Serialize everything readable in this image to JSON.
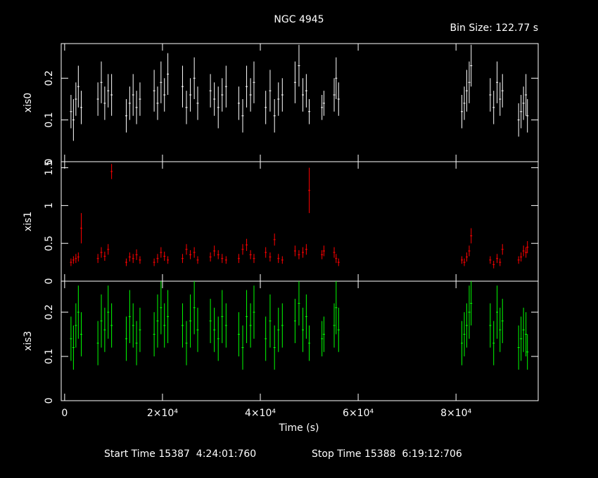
{
  "title": "NGC 4945",
  "bin_size": "Bin Size: 122.77 s",
  "start_time": "Start Time 15387  4:24:01:760",
  "stop_time": "Stop Time 15388  6:19:12:706",
  "chart_data": {
    "type": "scatter",
    "x_label": "Time (s)",
    "xlim": [
      -700,
      96800
    ],
    "xticks": [
      0,
      {
        "value": 20000,
        "label": "2×10⁴"
      },
      {
        "value": 40000,
        "label": "4×10⁴"
      },
      {
        "value": 60000,
        "label": "6×10⁴"
      },
      {
        "value": 80000,
        "label": "8×10⁴"
      }
    ],
    "x": [
      1300,
      1800,
      2300,
      2800,
      3400,
      6800,
      7500,
      8200,
      8900,
      9600,
      12600,
      13300,
      14000,
      14700,
      15400,
      18300,
      19000,
      19700,
      20400,
      21100,
      24100,
      24900,
      25700,
      26500,
      27200,
      29800,
      30600,
      31400,
      32200,
      33000,
      35600,
      36400,
      37200,
      38000,
      38700,
      41100,
      42000,
      42900,
      43700,
      44500,
      47100,
      47900,
      48700,
      49400,
      50000,
      52600,
      53000,
      55100,
      55500,
      56000,
      81200,
      81700,
      82200,
      82700,
      83100,
      87000,
      87700,
      88400,
      89000,
      89500,
      92800,
      93300,
      93800,
      94300,
      94600
    ],
    "series": [
      {
        "name": "xis0",
        "color": "#ffffff",
        "ylim": [
          0,
          0.283
        ],
        "yticks": [
          0,
          0.1,
          0.2
        ],
        "values": [
          0.12,
          0.1,
          0.15,
          0.18,
          0.13,
          0.15,
          0.19,
          0.14,
          0.17,
          0.16,
          0.11,
          0.14,
          0.16,
          0.13,
          0.15,
          0.17,
          0.14,
          0.19,
          0.16,
          0.21,
          0.18,
          0.13,
          0.16,
          0.2,
          0.14,
          0.17,
          0.15,
          0.13,
          0.16,
          0.18,
          0.14,
          0.11,
          0.18,
          0.16,
          0.19,
          0.13,
          0.17,
          0.11,
          0.15,
          0.16,
          0.19,
          0.23,
          0.16,
          0.17,
          0.12,
          0.13,
          0.14,
          0.16,
          0.2,
          0.15,
          0.12,
          0.14,
          0.17,
          0.19,
          0.23,
          0.16,
          0.13,
          0.19,
          0.15,
          0.17,
          0.1,
          0.12,
          0.14,
          0.16,
          0.11
        ],
        "errors": [
          0.04,
          0.05,
          0.04,
          0.05,
          0.04,
          0.04,
          0.05,
          0.04,
          0.04,
          0.05,
          0.04,
          0.04,
          0.05,
          0.04,
          0.04,
          0.05,
          0.04,
          0.05,
          0.04,
          0.05,
          0.05,
          0.04,
          0.04,
          0.05,
          0.04,
          0.04,
          0.04,
          0.05,
          0.04,
          0.05,
          0.04,
          0.04,
          0.05,
          0.04,
          0.05,
          0.04,
          0.05,
          0.04,
          0.04,
          0.04,
          0.05,
          0.05,
          0.04,
          0.04,
          0.03,
          0.03,
          0.03,
          0.04,
          0.05,
          0.04,
          0.04,
          0.04,
          0.05,
          0.05,
          0.05,
          0.04,
          0.04,
          0.05,
          0.04,
          0.04,
          0.04,
          0.04,
          0.04,
          0.05,
          0.04
        ]
      },
      {
        "name": "xis1",
        "color": "#ff0000",
        "ylim": [
          0,
          1.58
        ],
        "yticks": [
          0,
          0.5,
          1,
          1.5
        ],
        "values": [
          0.25,
          0.28,
          0.3,
          0.32,
          0.7,
          0.3,
          0.38,
          0.33,
          0.42,
          1.45,
          0.25,
          0.32,
          0.3,
          0.35,
          0.28,
          0.25,
          0.3,
          0.38,
          0.33,
          0.28,
          0.3,
          0.42,
          0.35,
          0.38,
          0.28,
          0.32,
          0.4,
          0.35,
          0.3,
          0.28,
          0.3,
          0.42,
          0.48,
          0.35,
          0.3,
          0.38,
          0.32,
          0.55,
          0.3,
          0.28,
          0.4,
          0.35,
          0.38,
          0.42,
          1.2,
          0.35,
          0.4,
          0.38,
          0.3,
          0.25,
          0.28,
          0.25,
          0.32,
          0.4,
          0.6,
          0.28,
          0.22,
          0.3,
          0.25,
          0.42,
          0.28,
          0.32,
          0.4,
          0.38,
          0.45
        ],
        "errors": [
          0.05,
          0.05,
          0.06,
          0.06,
          0.2,
          0.06,
          0.07,
          0.06,
          0.07,
          0.1,
          0.05,
          0.06,
          0.06,
          0.07,
          0.05,
          0.05,
          0.06,
          0.07,
          0.06,
          0.05,
          0.06,
          0.07,
          0.06,
          0.07,
          0.05,
          0.06,
          0.07,
          0.06,
          0.06,
          0.05,
          0.06,
          0.07,
          0.08,
          0.06,
          0.06,
          0.07,
          0.06,
          0.08,
          0.06,
          0.05,
          0.07,
          0.06,
          0.07,
          0.07,
          0.3,
          0.06,
          0.07,
          0.07,
          0.06,
          0.05,
          0.05,
          0.05,
          0.06,
          0.07,
          0.1,
          0.05,
          0.05,
          0.06,
          0.05,
          0.07,
          0.05,
          0.06,
          0.07,
          0.07,
          0.08
        ]
      },
      {
        "name": "xis3",
        "color": "#00ff00",
        "ylim": [
          0,
          0.27
        ],
        "yticks": [
          0,
          0.1,
          0.2
        ],
        "values": [
          0.14,
          0.12,
          0.17,
          0.2,
          0.15,
          0.13,
          0.18,
          0.16,
          0.2,
          0.17,
          0.14,
          0.19,
          0.17,
          0.13,
          0.16,
          0.15,
          0.18,
          0.21,
          0.17,
          0.19,
          0.17,
          0.13,
          0.18,
          0.21,
          0.16,
          0.18,
          0.16,
          0.14,
          0.19,
          0.17,
          0.15,
          0.12,
          0.19,
          0.17,
          0.2,
          0.14,
          0.18,
          0.12,
          0.16,
          0.17,
          0.18,
          0.22,
          0.16,
          0.19,
          0.13,
          0.14,
          0.15,
          0.17,
          0.21,
          0.16,
          0.13,
          0.15,
          0.17,
          0.2,
          0.22,
          0.17,
          0.13,
          0.2,
          0.16,
          0.18,
          0.12,
          0.14,
          0.16,
          0.15,
          0.11
        ],
        "errors": [
          0.05,
          0.05,
          0.05,
          0.06,
          0.05,
          0.05,
          0.06,
          0.05,
          0.06,
          0.05,
          0.05,
          0.06,
          0.05,
          0.05,
          0.05,
          0.05,
          0.06,
          0.06,
          0.05,
          0.06,
          0.05,
          0.05,
          0.06,
          0.06,
          0.05,
          0.05,
          0.05,
          0.05,
          0.06,
          0.05,
          0.05,
          0.05,
          0.06,
          0.05,
          0.06,
          0.05,
          0.06,
          0.05,
          0.05,
          0.05,
          0.05,
          0.05,
          0.05,
          0.05,
          0.04,
          0.04,
          0.04,
          0.05,
          0.06,
          0.05,
          0.05,
          0.05,
          0.05,
          0.06,
          0.05,
          0.05,
          0.05,
          0.06,
          0.05,
          0.05,
          0.05,
          0.05,
          0.05,
          0.05,
          0.04
        ]
      }
    ]
  }
}
